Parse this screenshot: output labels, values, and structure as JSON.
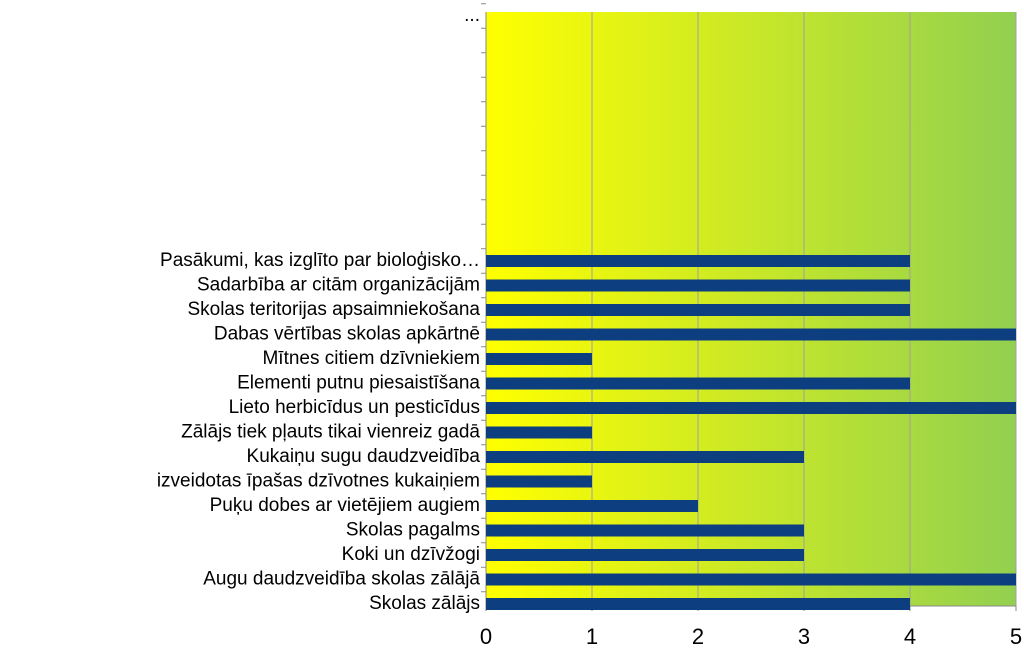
{
  "chart_data": {
    "type": "barh",
    "categories": [
      "Skolas zālājs",
      "Augu daudzveidība skolas zālājā",
      "Koki un dzīvžogi",
      "Skolas pagalms",
      "Puķu dobes ar vietējiem augiem",
      "izveidotas īpašas dzīvotnes kukaiņiem",
      "Kukaiņu sugu daudzveidība",
      "Zālājs tiek pļauts tikai vienreiz gadā",
      "Lieto herbicīdus un pesticīdus",
      "Elementi putnu piesaistīšana",
      "Mītnes citiem dzīvniekiem",
      "Dabas vērtības skolas apkārtnē",
      "Skolas teritorijas apsaimniekošana",
      "Sadarbība ar citām organizācijām",
      "Pasākumi, kas izglīto par bioloģisko…",
      null,
      null,
      null,
      null,
      null,
      null,
      null,
      null,
      null,
      "..."
    ],
    "values": [
      4,
      5,
      3,
      3,
      2,
      1,
      3,
      1,
      5,
      4,
      1,
      5,
      4,
      4,
      4,
      null,
      null,
      null,
      null,
      null,
      null,
      null,
      null,
      null,
      null
    ],
    "color": "#0d3f80",
    "xlim": [
      0,
      5
    ],
    "xticks": [
      0,
      1,
      2,
      3,
      4,
      5
    ],
    "grid": true,
    "background": [
      "#ffff00",
      "#92d050"
    ]
  }
}
